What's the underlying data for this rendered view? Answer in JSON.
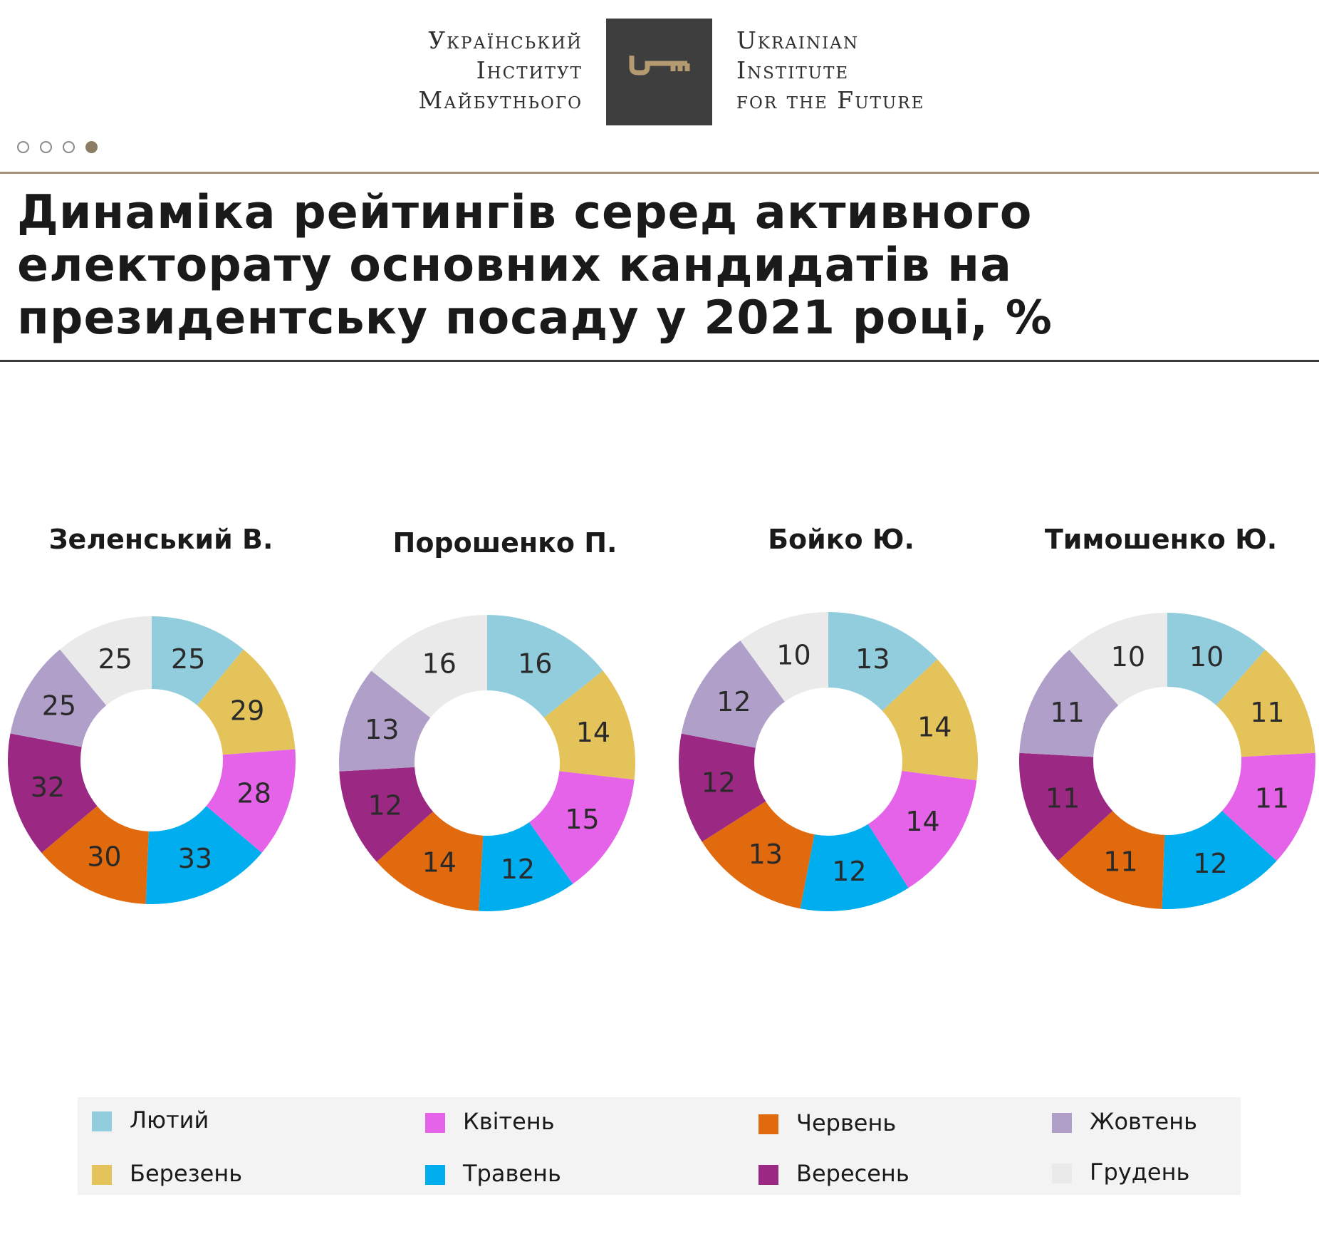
{
  "header": {
    "logo_ua": [
      "Український",
      "Інститут",
      "Майбутнього"
    ],
    "logo_en": [
      "Ukrainian",
      "Institute",
      "for the Future"
    ],
    "logo_icon": "key-icon",
    "pager": {
      "total": 4,
      "active": 4
    }
  },
  "title": "Динаміка рейтингів серед активного електорату основних кандидатів на президентську посаду у 2021 році, %",
  "colors": {
    "logo_box": "#3e3e3f",
    "key": "#b39a70",
    "accent_rule": "#a39179",
    "months": [
      "#92cddd",
      "#e3c35a",
      "#e463e9",
      "#00aeef",
      "#e1690e",
      "#9b2883",
      "#b09fc9",
      "#eaeaea"
    ]
  },
  "legend": {
    "items": [
      {
        "label": "Лютий",
        "color": "#92cddd"
      },
      {
        "label": "Березень",
        "color": "#e3c35a"
      },
      {
        "label": "Квітень",
        "color": "#e463e9"
      },
      {
        "label": "Травень",
        "color": "#00aeef"
      },
      {
        "label": "Червень",
        "color": "#e1690e"
      },
      {
        "label": "Вересень",
        "color": "#9b2883"
      },
      {
        "label": "Жовтень",
        "color": "#b09fc9"
      },
      {
        "label": "Грудень",
        "color": "#eaeaea"
      }
    ]
  },
  "chart_data": [
    {
      "type": "pie",
      "title": "Зеленський В.",
      "categories": [
        "Лютий",
        "Березень",
        "Квітень",
        "Травень",
        "Червень",
        "Вересень",
        "Жовтень",
        "Грудень"
      ],
      "values": [
        25,
        29,
        28,
        33,
        30,
        32,
        25,
        25
      ]
    },
    {
      "type": "pie",
      "title": "Порошенко П.",
      "categories": [
        "Лютий",
        "Березень",
        "Квітень",
        "Травень",
        "Червень",
        "Вересень",
        "Жовтень",
        "Грудень"
      ],
      "values": [
        16,
        14,
        15,
        12,
        14,
        12,
        13,
        16
      ]
    },
    {
      "type": "pie",
      "title": "Бойко Ю.",
      "categories": [
        "Лютий",
        "Березень",
        "Квітень",
        "Травень",
        "Червень",
        "Вересень",
        "Жовтень",
        "Грудень"
      ],
      "values": [
        13,
        14,
        14,
        12,
        13,
        12,
        12,
        10
      ]
    },
    {
      "type": "pie",
      "title": "Тимошенко Ю.",
      "categories": [
        "Лютий",
        "Березень",
        "Квітень",
        "Травень",
        "Червень",
        "Вересень",
        "Жовтень",
        "Грудень"
      ],
      "values": [
        10,
        11,
        11,
        12,
        11,
        11,
        11,
        10
      ]
    }
  ]
}
